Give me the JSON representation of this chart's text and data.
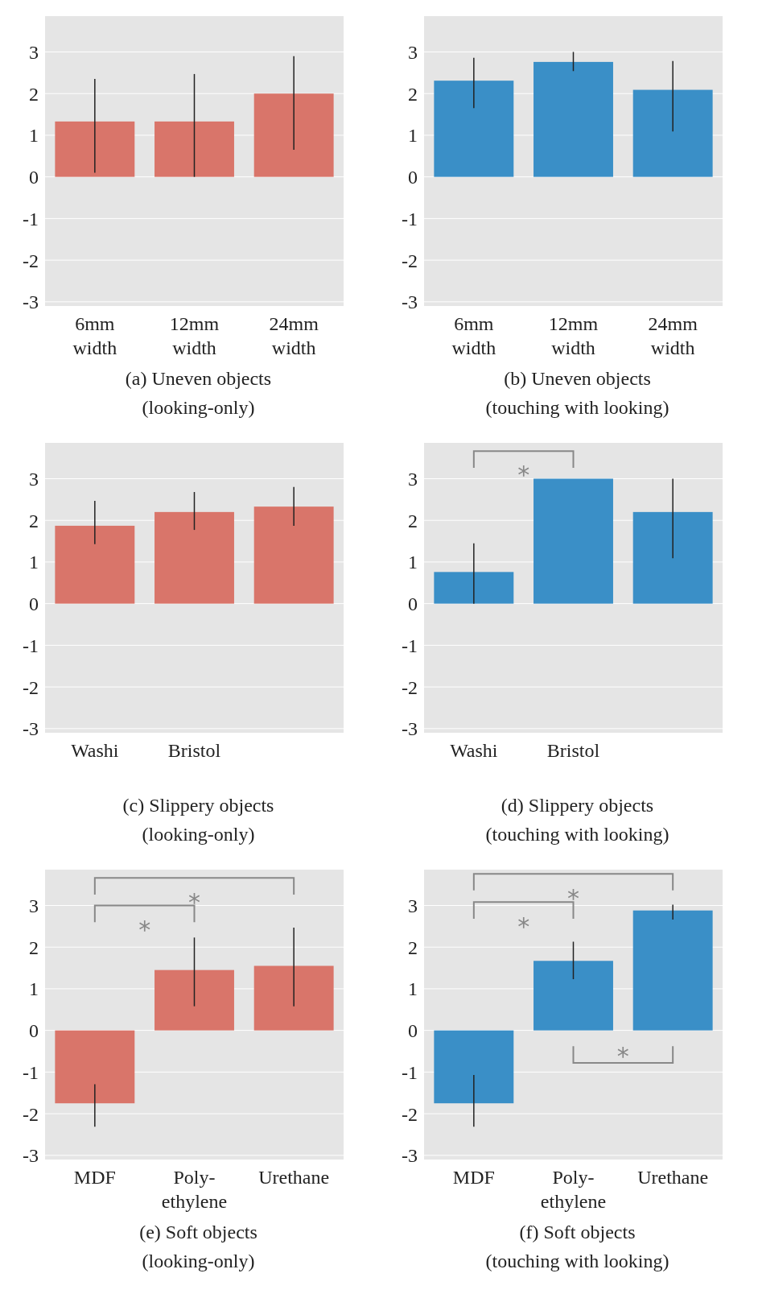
{
  "chart_data": [
    {
      "type": "bar",
      "title": "(a) Uneven objects\n(looking-only)",
      "categories": [
        "6mm\nwidth",
        "12mm\nwidth",
        "24mm\nwidth"
      ],
      "values": [
        1.33,
        1.33,
        2.0
      ],
      "errors": [
        [
          0.1,
          2.35
        ],
        [
          0.0,
          2.47
        ],
        [
          0.65,
          2.9
        ]
      ],
      "color": "#d9756a",
      "ylim": [
        -3.1,
        3.86
      ],
      "yticks": [
        -3,
        -2,
        -1,
        0,
        1,
        2,
        3
      ],
      "grid": "y"
    },
    {
      "type": "bar",
      "title": "(b) Uneven objects\n(touching with looking)",
      "categories": [
        "6mm\nwidth",
        "12mm\nwidth",
        "24mm\nwidth"
      ],
      "values": [
        2.31,
        2.76,
        2.09
      ],
      "errors": [
        [
          1.65,
          2.86
        ],
        [
          2.54,
          3.0
        ],
        [
          1.09,
          2.78
        ]
      ],
      "color": "#3a8fc7",
      "ylim": [
        -3.1,
        3.86
      ],
      "yticks": [
        -3,
        -2,
        -1,
        0,
        1,
        2,
        3
      ],
      "grid": "y"
    },
    {
      "type": "bar",
      "title": "(c) Slippery objects\n(looking-only)",
      "categories": [
        "Washi",
        "Bristol",
        null
      ],
      "values": [
        1.87,
        2.2,
        2.33
      ],
      "errors": [
        [
          1.43,
          2.47
        ],
        [
          1.77,
          2.68
        ],
        [
          1.87,
          2.8
        ]
      ],
      "color": "#d9756a",
      "ylim": [
        -3.1,
        3.86
      ],
      "yticks": [
        -3,
        -2,
        -1,
        0,
        1,
        2,
        3
      ],
      "grid": "y"
    },
    {
      "type": "bar",
      "title": "(d) Slippery objects\n(touching with looking)",
      "categories": [
        "Washi",
        "Bristol",
        null
      ],
      "values": [
        0.76,
        3.0,
        2.2
      ],
      "errors": [
        [
          0.0,
          1.45
        ],
        null,
        [
          1.09,
          3.0
        ]
      ],
      "color": "#3a8fc7",
      "ylim": [
        -3.1,
        3.86
      ],
      "yticks": [
        -3,
        -2,
        -1,
        0,
        1,
        2,
        3
      ],
      "grid": "y",
      "annotations": [
        "*"
      ]
    },
    {
      "type": "bar",
      "title": "(e) Soft objects\n(looking-only)",
      "categories": [
        "MDF",
        "Poly-\nethylene",
        "Urethane"
      ],
      "values": [
        -1.75,
        1.45,
        1.55
      ],
      "errors": [
        [
          -2.31,
          -1.29
        ],
        [
          0.58,
          2.23
        ],
        [
          0.58,
          2.47
        ]
      ],
      "color": "#d9756a",
      "ylim": [
        -3.1,
        3.86
      ],
      "yticks": [
        -3,
        -2,
        -1,
        0,
        1,
        2,
        3
      ],
      "grid": "y",
      "annotations": [
        "*",
        "*"
      ]
    },
    {
      "type": "bar",
      "title": "(f) Soft objects\n(touching with looking)",
      "categories": [
        "MDF",
        "Poly-\nethylene",
        "Urethane"
      ],
      "values": [
        -1.75,
        1.67,
        2.88
      ],
      "errors": [
        [
          -2.31,
          -1.07
        ],
        [
          1.23,
          2.13
        ],
        [
          2.66,
          3.02
        ]
      ],
      "color": "#3a8fc7",
      "ylim": [
        -3.1,
        3.86
      ],
      "yticks": [
        -3,
        -2,
        -1,
        0,
        1,
        2,
        3
      ],
      "grid": "y",
      "annotations": [
        "*",
        "*",
        "*"
      ]
    }
  ]
}
